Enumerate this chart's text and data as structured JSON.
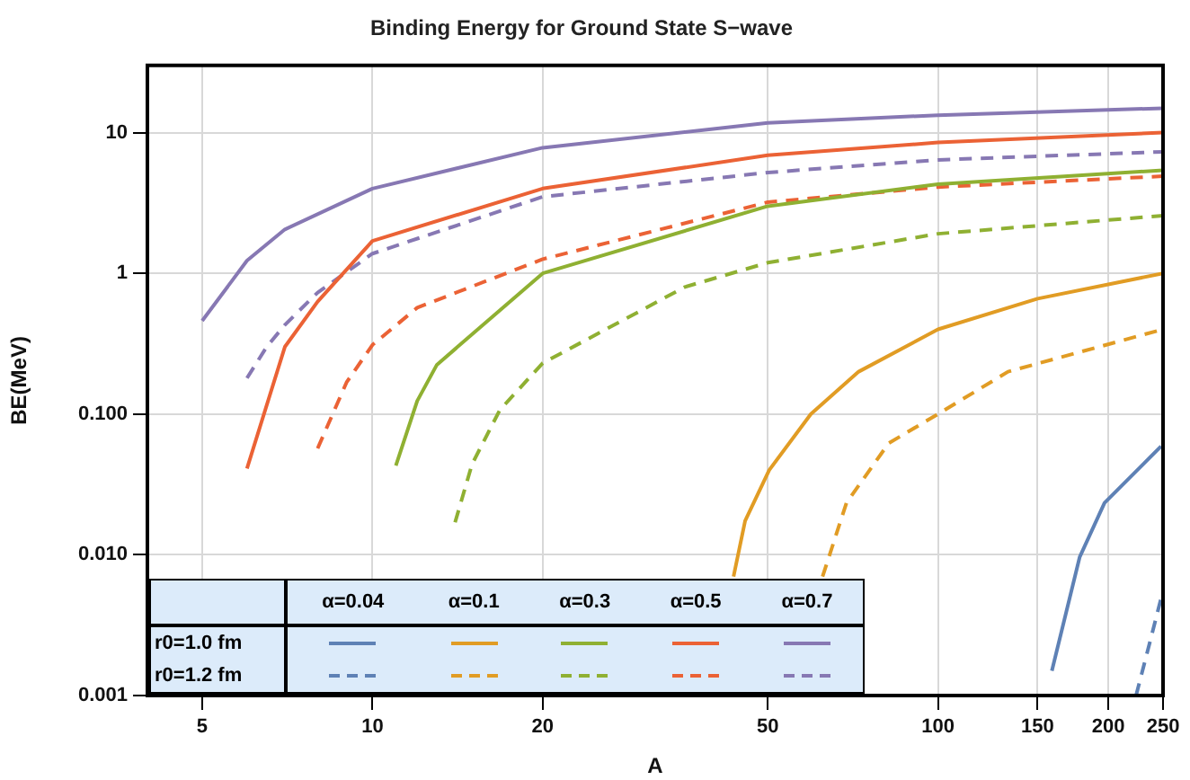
{
  "chart_data": {
    "type": "line",
    "title": "Binding Energy for Ground State S−wave",
    "xlabel": "A",
    "ylabel": "BE(MeV)",
    "log": "xy",
    "grid": true,
    "annotations": [
      "α=0.04",
      "α=0.1",
      "α=0.3",
      "α=0.5",
      "α=0.7",
      "r0=1.0 fm",
      "r0=1.2 fm"
    ],
    "xlim": [
      4,
      250
    ],
    "xticks": [
      5,
      10,
      20,
      50,
      100,
      150,
      200,
      250
    ],
    "ylim": [
      0.001,
      30
    ],
    "yticks": [
      0.001,
      {
        "value": 0.01,
        "label": "0.010"
      },
      {
        "value": 0.1,
        "label": "0.100"
      },
      1,
      10
    ],
    "series": [
      {
        "color": "#5e81b5",
        "line_style": "solid",
        "x": [
          159,
          178,
          197,
          248
        ],
        "values": [
          0.0015,
          0.0096,
          0.0234,
          0.059
        ]
      },
      {
        "color": "#e19c24",
        "line_style": "solid",
        "x": [
          43.5,
          45.6,
          50.3,
          59.6,
          72.4,
          100,
          150,
          250
        ],
        "values": [
          0.007,
          0.0174,
          0.04,
          0.1,
          0.2,
          0.4,
          0.66,
          1.0
        ]
      },
      {
        "color": "#8fb032",
        "line_style": "solid",
        "x": [
          11,
          12,
          13,
          20,
          50,
          100,
          250
        ],
        "values": [
          0.043,
          0.124,
          0.224,
          1.0,
          3.0,
          4.3,
          5.4
        ]
      },
      {
        "color": "#eb6235",
        "line_style": "solid",
        "x": [
          6,
          7,
          8,
          10,
          20,
          50,
          100,
          250
        ],
        "values": [
          0.041,
          0.3,
          0.63,
          1.7,
          4.0,
          6.9,
          8.5,
          10
        ]
      },
      {
        "color": "#8778b3",
        "line_style": "solid",
        "x": [
          5,
          6,
          7,
          10,
          20,
          50,
          100,
          250
        ],
        "values": [
          0.46,
          1.23,
          2.05,
          4.0,
          7.8,
          11.7,
          13.3,
          14.9
        ]
      },
      {
        "color": "#5e81b5",
        "line_style": "dashed",
        "x": [
          224,
          237,
          248,
          250
        ],
        "values": [
          0.001,
          0.0024,
          0.0049,
          0.0052
        ]
      },
      {
        "color": "#e19c24",
        "line_style": "dashed",
        "x": [
          62.5,
          68.9,
          81.8,
          100,
          133,
          250
        ],
        "values": [
          0.007,
          0.0234,
          0.062,
          0.1,
          0.2,
          0.4
        ]
      },
      {
        "color": "#8fb032",
        "line_style": "dashed",
        "x": [
          14,
          15,
          16.8,
          20,
          35.7,
          50,
          100,
          250
        ],
        "values": [
          0.017,
          0.044,
          0.107,
          0.23,
          0.8,
          1.19,
          1.91,
          2.57
        ]
      },
      {
        "color": "#eb6235",
        "line_style": "dashed",
        "x": [
          8,
          9,
          10,
          12,
          20,
          50,
          100,
          250
        ],
        "values": [
          0.057,
          0.168,
          0.31,
          0.57,
          1.26,
          3.2,
          4.1,
          4.9
        ]
      },
      {
        "color": "#8778b3",
        "line_style": "dashed",
        "x": [
          6,
          6.5,
          7,
          8,
          10,
          20,
          50,
          100,
          250
        ],
        "values": [
          0.18,
          0.3,
          0.43,
          0.73,
          1.38,
          3.5,
          5.2,
          6.4,
          7.3
        ]
      }
    ]
  }
}
